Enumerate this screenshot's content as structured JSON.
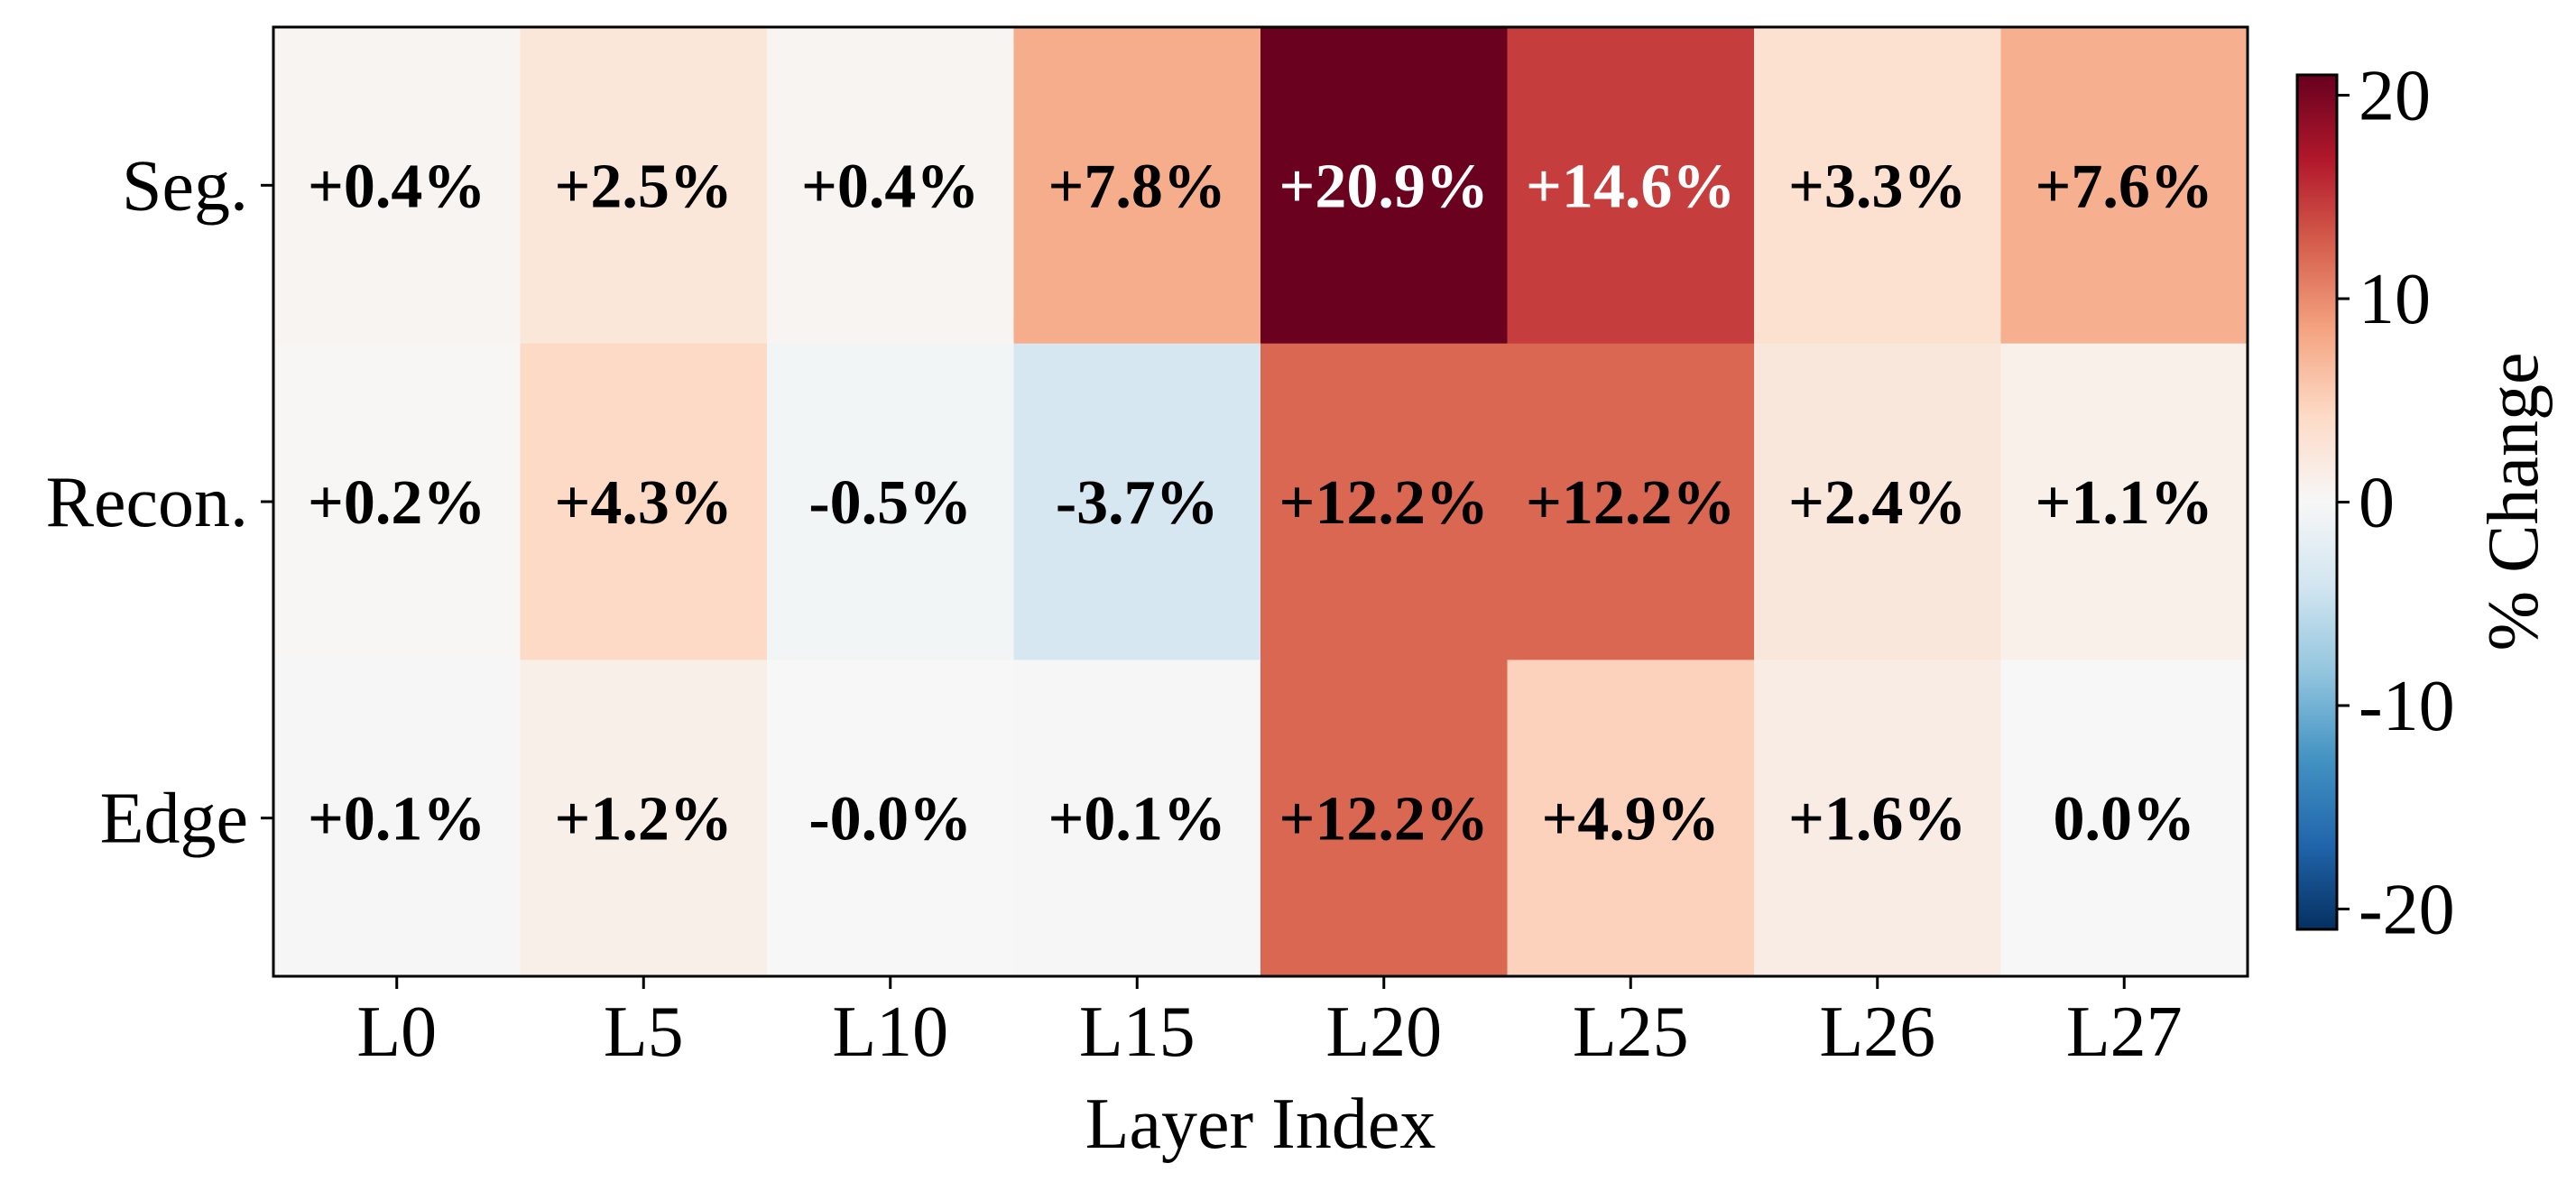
{
  "chart_data": {
    "type": "heatmap",
    "x_categories": [
      "L0",
      "L5",
      "L10",
      "L15",
      "L20",
      "L25",
      "L26",
      "L27"
    ],
    "y_categories": [
      "Seg.",
      "Recon.",
      "Edge"
    ],
    "values": [
      [
        0.4,
        2.5,
        0.4,
        7.8,
        20.9,
        14.6,
        3.3,
        7.6
      ],
      [
        0.2,
        4.3,
        -0.5,
        -3.7,
        12.2,
        12.2,
        2.4,
        1.1
      ],
      [
        0.1,
        1.2,
        -0.0,
        0.1,
        12.2,
        4.9,
        1.6,
        0.0
      ]
    ],
    "cell_labels": [
      [
        "+0.4%",
        "+2.5%",
        "+0.4%",
        "+7.8%",
        "+20.9%",
        "+14.6%",
        "+3.3%",
        "+7.6%"
      ],
      [
        "+0.2%",
        "+4.3%",
        "-0.5%",
        "-3.7%",
        "+12.2%",
        "+12.2%",
        "+2.4%",
        "+1.1%"
      ],
      [
        "+0.1%",
        "+1.2%",
        "-0.0%",
        "+0.1%",
        "+12.2%",
        "+4.9%",
        "+1.6%",
        "0.0%"
      ]
    ],
    "xlabel": "Layer Index",
    "ylabel": "",
    "colorbar": {
      "label": "% Change",
      "range": [
        -21,
        21
      ],
      "ticks": [
        20,
        10,
        0,
        -10,
        -20
      ],
      "tick_labels": [
        "20",
        "10",
        "0",
        "-10",
        "-20"
      ],
      "colormap": "RdBu_r"
    }
  }
}
